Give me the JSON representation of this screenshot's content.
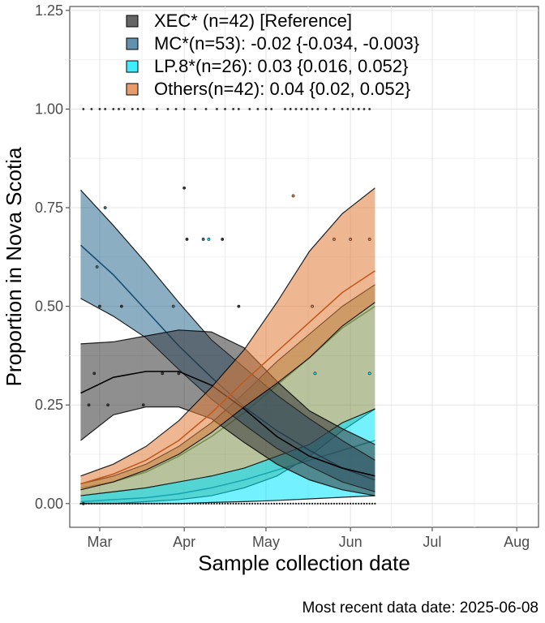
{
  "chart_data": {
    "type": "area",
    "xlabel": "Sample collection date",
    "ylabel": "Proportion in Nova Scotia",
    "caption": "Most recent data date: 2025-06-08",
    "x_ticks": [
      {
        "date": "2025-03-01",
        "label": "Mar"
      },
      {
        "date": "2025-04-01",
        "label": "Apr"
      },
      {
        "date": "2025-05-01",
        "label": "May"
      },
      {
        "date": "2025-06-01",
        "label": "Jun"
      },
      {
        "date": "2025-07-01",
        "label": "Jul"
      },
      {
        "date": "2025-08-01",
        "label": "Aug"
      }
    ],
    "y_ticks": [
      {
        "value": 0,
        "label": "0.00"
      },
      {
        "value": 0.25,
        "label": "0.25"
      },
      {
        "value": 0.5,
        "label": "0.50"
      },
      {
        "value": 0.75,
        "label": "0.75"
      },
      {
        "value": 1.0,
        "label": "1.00"
      },
      {
        "value": 1.25,
        "label": "1.25"
      }
    ],
    "xlim": [
      "2025-02-18",
      "2025-08-09"
    ],
    "ylim": [
      -0.06,
      1.26
    ],
    "grid": true,
    "legend_position": "top-left",
    "series": [
      {
        "name": "XEC*",
        "legend_label": "XEC* (n=42)  [Reference]",
        "fill": "#333333",
        "line": "#000000",
        "x": [
          "2025-02-22",
          "2025-03-06",
          "2025-03-18",
          "2025-03-30",
          "2025-04-11",
          "2025-04-23",
          "2025-05-05",
          "2025-05-17",
          "2025-05-29",
          "2025-06-10"
        ],
        "y": [
          0.28,
          0.32,
          0.335,
          0.335,
          0.3,
          0.24,
          0.17,
          0.12,
          0.09,
          0.07
        ],
        "lower": [
          0.16,
          0.225,
          0.245,
          0.245,
          0.215,
          0.155,
          0.1,
          0.06,
          0.035,
          0.02
        ],
        "upper": [
          0.405,
          0.41,
          0.425,
          0.44,
          0.435,
          0.395,
          0.31,
          0.235,
          0.19,
          0.15
        ]
      },
      {
        "name": "MC*",
        "legend_label": "MC*(n=53): -0.02 {-0.034, -0.003}",
        "fill": "#2d6c91",
        "line": "#164f72",
        "x": [
          "2025-02-22",
          "2025-03-06",
          "2025-03-18",
          "2025-03-30",
          "2025-04-11",
          "2025-04-23",
          "2025-05-05",
          "2025-05-17",
          "2025-05-29",
          "2025-06-10"
        ],
        "y": [
          0.655,
          0.58,
          0.49,
          0.4,
          0.32,
          0.245,
          0.185,
          0.135,
          0.09,
          0.06
        ],
        "lower": [
          0.52,
          0.475,
          0.42,
          0.34,
          0.265,
          0.2,
          0.14,
          0.095,
          0.055,
          0.03
        ],
        "upper": [
          0.795,
          0.705,
          0.61,
          0.51,
          0.415,
          0.345,
          0.275,
          0.215,
          0.16,
          0.11
        ]
      },
      {
        "name": "LP.8*",
        "legend_label": "LP.8*(n=26): 0.03 {0.016, 0.052}",
        "fill": "#00e5ff",
        "line": "#1aa6b3",
        "x": [
          "2025-02-22",
          "2025-03-06",
          "2025-03-18",
          "2025-03-30",
          "2025-04-11",
          "2025-04-23",
          "2025-05-05",
          "2025-05-17",
          "2025-05-29",
          "2025-06-10"
        ],
        "y": [
          0.005,
          0.01,
          0.015,
          0.025,
          0.04,
          0.06,
          0.085,
          0.11,
          0.135,
          0.16
        ],
        "lower": [
          0.0,
          0.0,
          0.0,
          0.0,
          0.003,
          0.005,
          0.008,
          0.012,
          0.016,
          0.02
        ],
        "upper": [
          0.02,
          0.03,
          0.04,
          0.055,
          0.07,
          0.09,
          0.12,
          0.15,
          0.205,
          0.24
        ]
      },
      {
        "name": "Others",
        "legend_label": "Others(n=42): 0.04 {0.02, 0.052}",
        "fill": "#e07b39",
        "line": "#c35a1d",
        "x": [
          "2025-02-22",
          "2025-03-06",
          "2025-03-18",
          "2025-03-30",
          "2025-04-11",
          "2025-04-23",
          "2025-05-05",
          "2025-05-17",
          "2025-05-29",
          "2025-06-10"
        ],
        "y": [
          0.05,
          0.075,
          0.11,
          0.16,
          0.23,
          0.31,
          0.385,
          0.46,
          0.535,
          0.59
        ],
        "lower": [
          0.035,
          0.055,
          0.085,
          0.125,
          0.18,
          0.245,
          0.305,
          0.37,
          0.45,
          0.51
        ],
        "upper": [
          0.07,
          0.1,
          0.145,
          0.21,
          0.295,
          0.39,
          0.51,
          0.64,
          0.735,
          0.8
        ]
      },
      {
        "name": "",
        "legend_label": "",
        "fill": "#7d8f4d",
        "line": "#7d8f4d",
        "x": [
          "2025-02-22",
          "2025-03-06",
          "2025-03-18",
          "2025-03-30",
          "2025-04-11",
          "2025-04-23",
          "2025-05-05",
          "2025-05-17",
          "2025-05-29",
          "2025-06-10"
        ],
        "y": [
          0.04,
          0.055,
          0.08,
          0.12,
          0.17,
          0.23,
          0.3,
          0.37,
          0.445,
          0.5
        ],
        "lower": [
          0.0,
          0.0,
          0.005,
          0.01,
          0.02,
          0.04,
          0.07,
          0.12,
          0.185,
          0.24
        ],
        "upper": [
          0.05,
          0.07,
          0.1,
          0.145,
          0.205,
          0.28,
          0.36,
          0.43,
          0.5,
          0.555
        ]
      }
    ],
    "points": [
      {
        "date": "2025-02-23",
        "y": 0.0,
        "series": "XEC*"
      },
      {
        "date": "2025-02-25",
        "y": 0.25,
        "series": "XEC*"
      },
      {
        "date": "2025-02-27",
        "y": 0.33,
        "series": "XEC*"
      },
      {
        "date": "2025-03-01",
        "y": 0.5,
        "series": "XEC*"
      },
      {
        "date": "2025-03-04",
        "y": 0.25,
        "series": "XEC*"
      },
      {
        "date": "2025-03-09",
        "y": 0.5,
        "series": "XEC*"
      },
      {
        "date": "2025-03-17",
        "y": 0.25,
        "series": "XEC*"
      },
      {
        "date": "2025-03-24",
        "y": 0.33,
        "series": "XEC*"
      },
      {
        "date": "2025-03-30",
        "y": 0.33,
        "series": "XEC*"
      },
      {
        "date": "2025-04-01",
        "y": 0.8,
        "series": "XEC*"
      },
      {
        "date": "2025-04-02",
        "y": 0.67,
        "series": "XEC*"
      },
      {
        "date": "2025-04-15",
        "y": 0.67,
        "series": "XEC*"
      },
      {
        "date": "2025-04-21",
        "y": 0.5,
        "series": "XEC*"
      },
      {
        "date": "2025-02-28",
        "y": 0.6,
        "series": "MC*"
      },
      {
        "date": "2025-03-03",
        "y": 0.75,
        "series": "MC*"
      },
      {
        "date": "2025-03-28",
        "y": 0.5,
        "series": "MC*"
      },
      {
        "date": "2025-04-08",
        "y": 0.67,
        "series": "MC*"
      },
      {
        "date": "2025-04-10",
        "y": 0.67,
        "series": "LP.8*"
      },
      {
        "date": "2025-05-11",
        "y": 0.78,
        "series": "Others"
      },
      {
        "date": "2025-05-18",
        "y": 0.5,
        "series": "Others"
      },
      {
        "date": "2025-05-26",
        "y": 0.67,
        "series": "Others"
      },
      {
        "date": "2025-06-01",
        "y": 0.67,
        "series": "Others"
      },
      {
        "date": "2025-06-08",
        "y": 0.67,
        "series": "Others"
      },
      {
        "date": "2025-05-19",
        "y": 0.33,
        "series": "LP.8*"
      },
      {
        "date": "2025-06-08",
        "y": 0.33,
        "series": "LP.8*"
      }
    ],
    "top_points": [
      "2025-02-23",
      "2025-02-26",
      "2025-03-01",
      "2025-03-03",
      "2025-03-06",
      "2025-03-08",
      "2025-03-10",
      "2025-03-13",
      "2025-03-15",
      "2025-03-17",
      "2025-03-22",
      "2025-03-26",
      "2025-03-29",
      "2025-04-01",
      "2025-04-05",
      "2025-04-09",
      "2025-04-13",
      "2025-04-16",
      "2025-04-19",
      "2025-04-21",
      "2025-04-25",
      "2025-04-28",
      "2025-05-01",
      "2025-05-03",
      "2025-05-08",
      "2025-05-10",
      "2025-05-12",
      "2025-05-14",
      "2025-05-16",
      "2025-05-18",
      "2025-05-20",
      "2025-05-23",
      "2025-05-26",
      "2025-05-29",
      "2025-05-31",
      "2025-06-02",
      "2025-06-04",
      "2025-06-06",
      "2025-06-08"
    ]
  }
}
